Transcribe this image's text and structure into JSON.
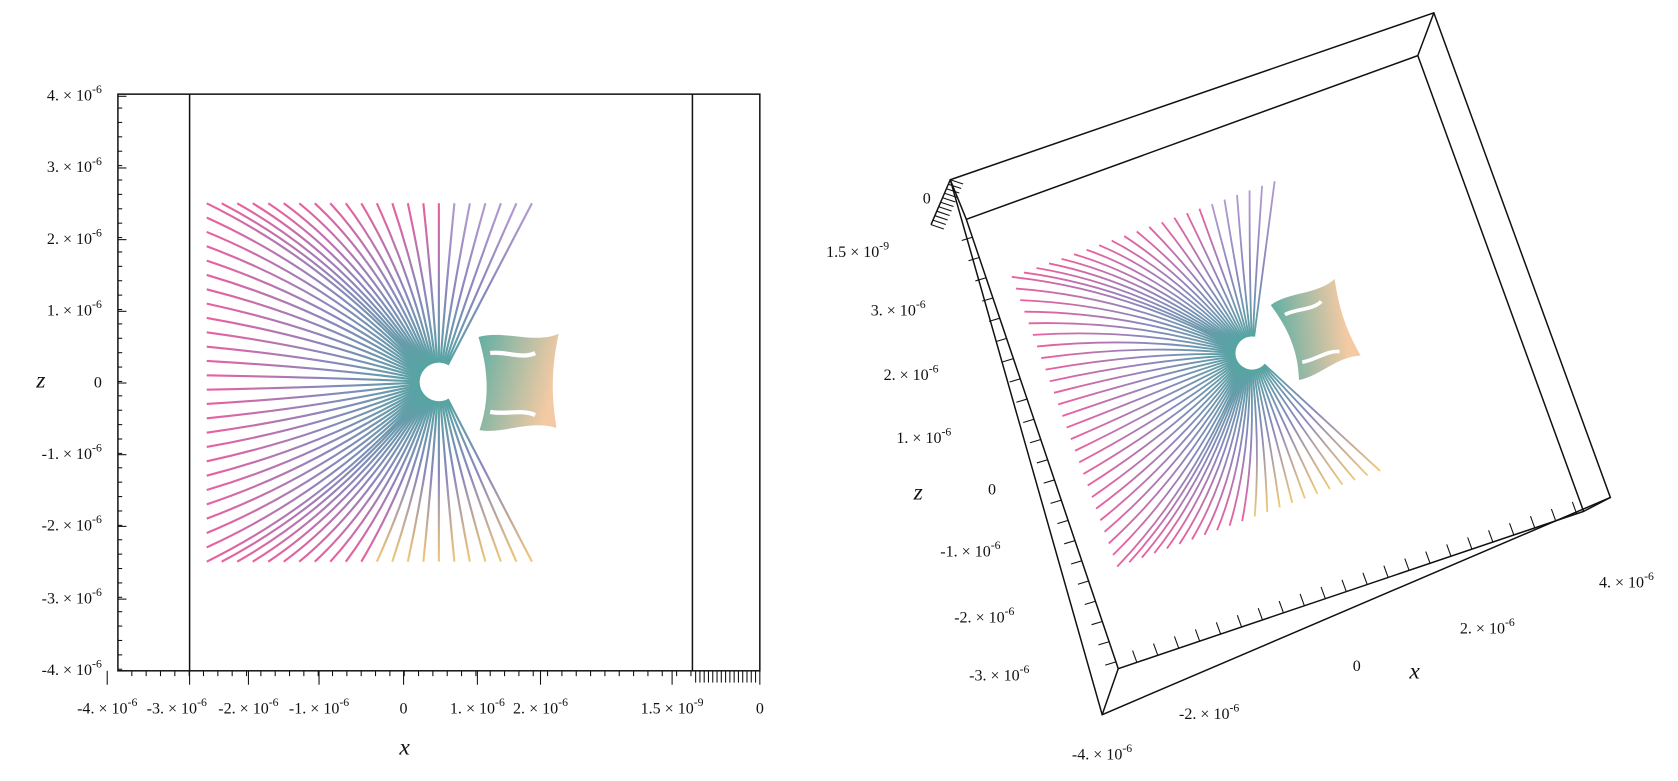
{
  "panels": [
    {
      "axis_labels": {
        "vertical": "z",
        "horizontal": "x"
      },
      "vertical_ticks": [
        {
          "base": "4. × 10",
          "exp": "-6"
        },
        {
          "base": "3. × 10",
          "exp": "-6"
        },
        {
          "base": "2. × 10",
          "exp": "-6"
        },
        {
          "base": "1. × 10",
          "exp": "-6"
        },
        {
          "base": "0"
        },
        {
          "base": "-1. × 10",
          "exp": "-6"
        },
        {
          "base": "-2. × 10",
          "exp": "-6"
        },
        {
          "base": "-3. × 10",
          "exp": "-6"
        },
        {
          "base": "-4. × 10",
          "exp": "-6"
        }
      ],
      "horizontal_ticks": [
        {
          "base": "-4. × 10",
          "exp": "-6"
        },
        {
          "base": "-3. × 10",
          "exp": "-6"
        },
        {
          "base": "-2. × 10",
          "exp": "-6"
        },
        {
          "base": "-1. × 10",
          "exp": "-6"
        },
        {
          "base": "0"
        },
        {
          "base": "1. × 10",
          "exp": "-6"
        },
        {
          "base": "2. × 10",
          "exp": "-6"
        },
        {
          "base": "1.5 × 10",
          "exp": "-9"
        },
        {
          "base": "0"
        }
      ]
    },
    {
      "axis_labels": {
        "vertical": "z",
        "horizontal": "x"
      },
      "depth_ticks": [
        {
          "base": "0"
        },
        {
          "base": "1.5 × 10",
          "exp": "-9"
        }
      ],
      "vertical_ticks": [
        {
          "base": "3. × 10",
          "exp": "-6"
        },
        {
          "base": "2. × 10",
          "exp": "-6"
        },
        {
          "base": "1. × 10",
          "exp": "-6"
        },
        {
          "base": "0"
        },
        {
          "base": "-1. × 10",
          "exp": "-6"
        },
        {
          "base": "-2. × 10",
          "exp": "-6"
        },
        {
          "base": "-3. × 10",
          "exp": "-6"
        },
        {
          "base": "-4. × 10",
          "exp": "-6"
        }
      ],
      "horizontal_ticks": [
        {
          "base": "-2. × 10",
          "exp": "-6"
        },
        {
          "base": "0"
        },
        {
          "base": "2. × 10",
          "exp": "-6"
        },
        {
          "base": "4. × 10",
          "exp": "-6"
        }
      ]
    }
  ]
}
